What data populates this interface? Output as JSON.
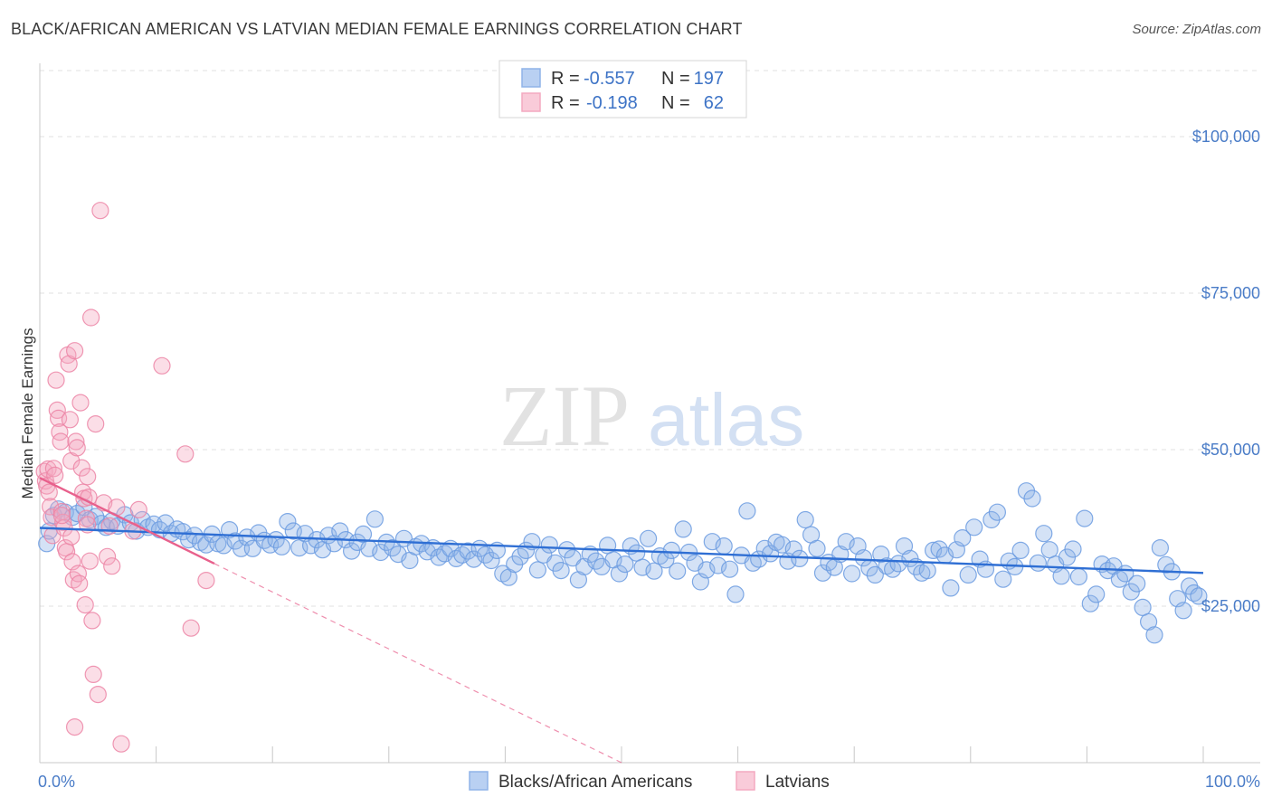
{
  "title": "BLACK/AFRICAN AMERICAN VS LATVIAN MEDIAN FEMALE EARNINGS CORRELATION CHART",
  "source": "Source: ZipAtlas.com",
  "watermark": {
    "zip": "ZIP",
    "atlas": "atlas"
  },
  "legend": {
    "r_label": "R =",
    "n_label": "N =",
    "rows": [
      {
        "r": "-0.557",
        "n": "197",
        "color": "#8fb3e8"
      },
      {
        "r": "-0.198",
        "n": "62",
        "color": "#f4a9c0"
      }
    ]
  },
  "bottom_legend": [
    {
      "label": "Blacks/African Americans",
      "color": "#8fb3e8"
    },
    {
      "label": "Latvians",
      "color": "#f4a9c0"
    }
  ],
  "chart_data": {
    "type": "scatter",
    "title": "BLACK/AFRICAN AMERICAN VS LATVIAN MEDIAN FEMALE EARNINGS CORRELATION CHART",
    "xlabel": "",
    "ylabel": "Median Female Earnings",
    "xlim": [
      0,
      100
    ],
    "ylim": [
      0,
      105000
    ],
    "x_tick_labels": [
      "0.0%",
      "100.0%"
    ],
    "y_ticks": [
      25000,
      50000,
      75000,
      100000
    ],
    "y_tick_labels": [
      "$25,000",
      "$50,000",
      "$75,000",
      "$100,000"
    ],
    "grid": "horizontal dashed",
    "series": [
      {
        "name": "Blacks/African Americans",
        "color": "#8fb3e8",
        "edge": "#6b9be0",
        "trend": {
          "x": [
            0,
            100
          ],
          "y": [
            37500,
            30300
          ],
          "style": "solid",
          "color": "#2f6fd4"
        },
        "points": [
          [
            0.6,
            35000
          ],
          [
            0.8,
            37000
          ],
          [
            1.2,
            39500
          ],
          [
            1.6,
            40500
          ],
          [
            2.2,
            40000
          ],
          [
            2.8,
            39200
          ],
          [
            3.2,
            39800
          ],
          [
            3.8,
            40800
          ],
          [
            4.3,
            38800
          ],
          [
            4.8,
            39300
          ],
          [
            5.3,
            38200
          ],
          [
            5.7,
            37600
          ],
          [
            6.2,
            38600
          ],
          [
            6.7,
            37800
          ],
          [
            7.3,
            39600
          ],
          [
            7.8,
            38300
          ],
          [
            8.3,
            37000
          ],
          [
            8.8,
            38800
          ],
          [
            9.3,
            37600
          ],
          [
            9.8,
            38100
          ],
          [
            10.3,
            37200
          ],
          [
            10.8,
            38300
          ],
          [
            11.3,
            36600
          ],
          [
            11.8,
            37300
          ],
          [
            12.3,
            36900
          ],
          [
            12.8,
            35600
          ],
          [
            13.3,
            36300
          ],
          [
            13.8,
            35200
          ],
          [
            14.3,
            34800
          ],
          [
            14.8,
            36500
          ],
          [
            15.3,
            35000
          ],
          [
            15.8,
            34700
          ],
          [
            16.3,
            37200
          ],
          [
            16.8,
            35400
          ],
          [
            17.3,
            34200
          ],
          [
            17.8,
            36000
          ],
          [
            18.3,
            34200
          ],
          [
            18.8,
            36700
          ],
          [
            19.3,
            35500
          ],
          [
            19.8,
            34800
          ],
          [
            20.3,
            35600
          ],
          [
            20.8,
            34500
          ],
          [
            21.3,
            38500
          ],
          [
            21.8,
            37000
          ],
          [
            22.3,
            34300
          ],
          [
            22.8,
            36600
          ],
          [
            23.3,
            34700
          ],
          [
            23.8,
            35600
          ],
          [
            24.3,
            34000
          ],
          [
            24.8,
            36300
          ],
          [
            25.3,
            35000
          ],
          [
            25.8,
            37000
          ],
          [
            26.3,
            35600
          ],
          [
            26.8,
            33800
          ],
          [
            27.3,
            35200
          ],
          [
            27.8,
            36500
          ],
          [
            28.3,
            34200
          ],
          [
            28.8,
            38900
          ],
          [
            29.3,
            33600
          ],
          [
            29.8,
            35200
          ],
          [
            30.3,
            34300
          ],
          [
            30.8,
            33300
          ],
          [
            31.3,
            35800
          ],
          [
            31.8,
            32300
          ],
          [
            32.3,
            34500
          ],
          [
            32.8,
            35000
          ],
          [
            33.3,
            33700
          ],
          [
            33.8,
            34300
          ],
          [
            34.3,
            32800
          ],
          [
            34.8,
            33400
          ],
          [
            35.3,
            34200
          ],
          [
            35.8,
            32600
          ],
          [
            36.3,
            33200
          ],
          [
            36.8,
            33800
          ],
          [
            37.3,
            32500
          ],
          [
            37.8,
            34200
          ],
          [
            38.3,
            33200
          ],
          [
            38.8,
            32300
          ],
          [
            39.3,
            33900
          ],
          [
            39.8,
            30200
          ],
          [
            40.3,
            29600
          ],
          [
            40.8,
            31700
          ],
          [
            41.3,
            32900
          ],
          [
            41.8,
            33900
          ],
          [
            42.3,
            35300
          ],
          [
            42.8,
            30800
          ],
          [
            43.3,
            33200
          ],
          [
            43.8,
            34800
          ],
          [
            44.3,
            31900
          ],
          [
            44.8,
            30700
          ],
          [
            45.3,
            34000
          ],
          [
            45.8,
            32700
          ],
          [
            46.3,
            29200
          ],
          [
            46.8,
            31300
          ],
          [
            47.3,
            33300
          ],
          [
            47.8,
            32200
          ],
          [
            48.3,
            31300
          ],
          [
            48.8,
            34700
          ],
          [
            49.3,
            32400
          ],
          [
            49.8,
            30200
          ],
          [
            50.3,
            31700
          ],
          [
            50.8,
            34600
          ],
          [
            51.3,
            33500
          ],
          [
            51.8,
            31200
          ],
          [
            52.3,
            35800
          ],
          [
            52.8,
            30600
          ],
          [
            53.3,
            33000
          ],
          [
            53.8,
            32400
          ],
          [
            54.3,
            33900
          ],
          [
            54.8,
            30600
          ],
          [
            55.3,
            37300
          ],
          [
            55.8,
            33600
          ],
          [
            56.3,
            31900
          ],
          [
            56.8,
            28900
          ],
          [
            57.3,
            30800
          ],
          [
            57.8,
            35300
          ],
          [
            58.3,
            31500
          ],
          [
            58.8,
            34600
          ],
          [
            59.3,
            30900
          ],
          [
            59.8,
            26900
          ],
          [
            60.3,
            33100
          ],
          [
            60.8,
            40200
          ],
          [
            61.3,
            31900
          ],
          [
            61.8,
            32500
          ],
          [
            62.3,
            34200
          ],
          [
            62.8,
            33400
          ],
          [
            63.3,
            35200
          ],
          [
            63.8,
            34800
          ],
          [
            64.3,
            32200
          ],
          [
            64.8,
            34100
          ],
          [
            65.3,
            32600
          ],
          [
            65.8,
            38800
          ],
          [
            66.3,
            36400
          ],
          [
            66.8,
            34200
          ],
          [
            67.3,
            30300
          ],
          [
            67.8,
            32000
          ],
          [
            68.3,
            31200
          ],
          [
            68.8,
            33300
          ],
          [
            69.3,
            35300
          ],
          [
            69.8,
            30200
          ],
          [
            70.3,
            34600
          ],
          [
            70.8,
            32700
          ],
          [
            71.3,
            31100
          ],
          [
            71.8,
            30000
          ],
          [
            72.3,
            33300
          ],
          [
            72.8,
            31400
          ],
          [
            73.3,
            30900
          ],
          [
            73.8,
            31800
          ],
          [
            74.3,
            34600
          ],
          [
            74.8,
            32600
          ],
          [
            75.3,
            31300
          ],
          [
            75.8,
            30300
          ],
          [
            76.3,
            30700
          ],
          [
            76.8,
            33900
          ],
          [
            77.3,
            34100
          ],
          [
            77.8,
            33100
          ],
          [
            78.3,
            27900
          ],
          [
            78.8,
            34000
          ],
          [
            79.3,
            35900
          ],
          [
            79.8,
            30000
          ],
          [
            80.3,
            37600
          ],
          [
            80.8,
            32500
          ],
          [
            81.3,
            30900
          ],
          [
            81.8,
            38800
          ],
          [
            82.3,
            40000
          ],
          [
            82.8,
            29300
          ],
          [
            83.3,
            32200
          ],
          [
            83.8,
            31300
          ],
          [
            84.3,
            33900
          ],
          [
            84.8,
            43400
          ],
          [
            85.3,
            42200
          ],
          [
            85.8,
            31900
          ],
          [
            86.3,
            36600
          ],
          [
            86.8,
            34000
          ],
          [
            87.3,
            31700
          ],
          [
            87.8,
            29800
          ],
          [
            88.3,
            32800
          ],
          [
            88.8,
            34100
          ],
          [
            89.3,
            29700
          ],
          [
            89.8,
            39000
          ],
          [
            90.3,
            25400
          ],
          [
            90.8,
            26900
          ],
          [
            91.3,
            31700
          ],
          [
            91.8,
            30700
          ],
          [
            92.3,
            31400
          ],
          [
            92.8,
            29300
          ],
          [
            93.3,
            30200
          ],
          [
            93.8,
            27300
          ],
          [
            94.3,
            28600
          ],
          [
            94.8,
            24800
          ],
          [
            95.3,
            22500
          ],
          [
            95.8,
            20400
          ],
          [
            96.3,
            34300
          ],
          [
            96.8,
            31600
          ],
          [
            97.3,
            30500
          ],
          [
            97.8,
            26200
          ],
          [
            98.3,
            24300
          ],
          [
            98.8,
            28200
          ],
          [
            99.2,
            27100
          ],
          [
            99.6,
            26600
          ]
        ]
      },
      {
        "name": "Latvians",
        "color": "#f4a9c0",
        "edge": "#ec85a6",
        "trend": {
          "x": [
            0,
            15
          ],
          "y": [
            45500,
            31800
          ],
          "style": "solid",
          "color": "#e8608c",
          "extended": {
            "x": [
              15,
              50
            ],
            "y": [
              31800,
              0
            ],
            "style": "dashed"
          }
        },
        "points": [
          [
            0.4,
            46500
          ],
          [
            0.5,
            45000
          ],
          [
            0.6,
            44200
          ],
          [
            0.7,
            46900
          ],
          [
            0.8,
            43200
          ],
          [
            0.9,
            40900
          ],
          [
            1.0,
            39200
          ],
          [
            1.1,
            36300
          ],
          [
            1.2,
            47000
          ],
          [
            1.3,
            45900
          ],
          [
            1.4,
            61100
          ],
          [
            1.5,
            56300
          ],
          [
            1.6,
            55000
          ],
          [
            1.7,
            52800
          ],
          [
            1.8,
            51300
          ],
          [
            1.9,
            40100
          ],
          [
            2.0,
            38400
          ],
          [
            2.1,
            37500
          ],
          [
            2.2,
            34300
          ],
          [
            2.3,
            33700
          ],
          [
            2.4,
            65100
          ],
          [
            2.5,
            63700
          ],
          [
            2.6,
            54800
          ],
          [
            2.7,
            48200
          ],
          [
            2.8,
            32100
          ],
          [
            2.9,
            29200
          ],
          [
            3.0,
            65800
          ],
          [
            3.1,
            51300
          ],
          [
            3.2,
            50300
          ],
          [
            3.3,
            30200
          ],
          [
            3.4,
            28600
          ],
          [
            3.5,
            57500
          ],
          [
            3.6,
            47100
          ],
          [
            3.7,
            43200
          ],
          [
            3.8,
            42200
          ],
          [
            3.9,
            25200
          ],
          [
            4.0,
            39000
          ],
          [
            4.1,
            45700
          ],
          [
            4.2,
            42400
          ],
          [
            4.3,
            32200
          ],
          [
            4.4,
            71100
          ],
          [
            4.5,
            22700
          ],
          [
            4.6,
            14100
          ],
          [
            4.8,
            54100
          ],
          [
            5.0,
            10900
          ],
          [
            5.2,
            88200
          ],
          [
            5.5,
            41500
          ],
          [
            5.8,
            32900
          ],
          [
            6.2,
            31400
          ],
          [
            6.6,
            40800
          ],
          [
            7.0,
            3000
          ],
          [
            8.0,
            37000
          ],
          [
            8.5,
            40400
          ],
          [
            10.5,
            63400
          ],
          [
            12.5,
            49300
          ],
          [
            13.0,
            21500
          ],
          [
            14.3,
            29100
          ],
          [
            4.1,
            38000
          ],
          [
            3.0,
            5700
          ],
          [
            2.7,
            36100
          ],
          [
            1.9,
            39500
          ],
          [
            6.0,
            37800
          ]
        ]
      }
    ]
  }
}
